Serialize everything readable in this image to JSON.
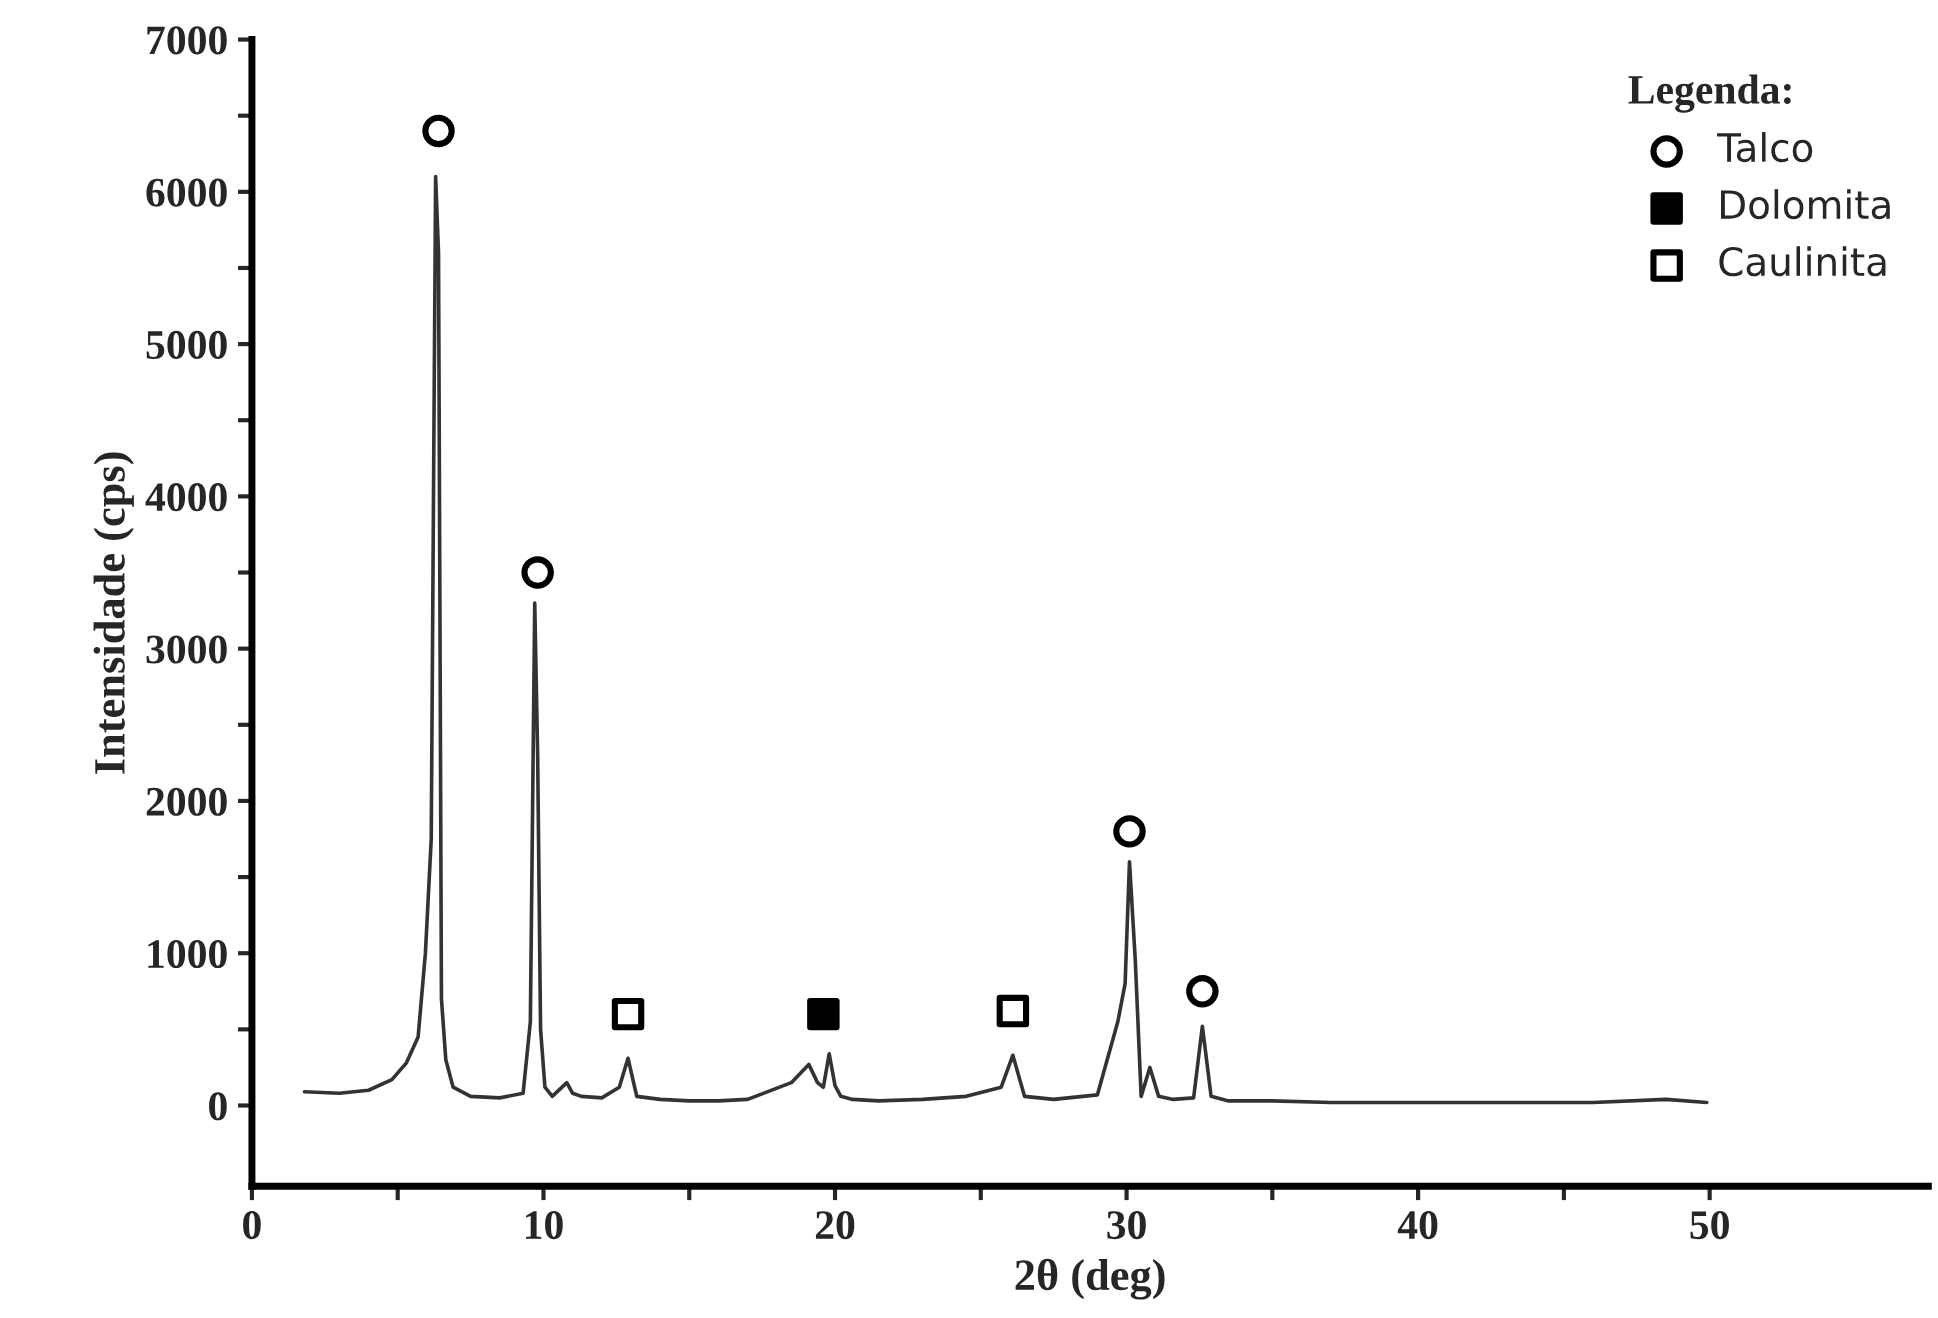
{
  "chart_data": {
    "type": "line",
    "xlabel": "2θ (deg)",
    "ylabel": "Intensidade (cps)",
    "legend_title": "Legenda:",
    "legend": "top right",
    "grid": false,
    "xlim": [
      0,
      57.5
    ],
    "ylim": [
      -530,
      7000
    ],
    "xticks": [
      0,
      {
        "value": 5,
        "label": null
      },
      10,
      {
        "value": 15,
        "label": null
      },
      20,
      {
        "value": 25,
        "label": null
      },
      30,
      {
        "value": 35,
        "label": null
      },
      40,
      {
        "value": 45,
        "label": null
      },
      50
    ],
    "yticks": [
      0,
      {
        "value": 500,
        "label": null
      },
      1000,
      {
        "value": 1500,
        "label": null
      },
      2000,
      {
        "value": 2500,
        "label": null
      },
      3000,
      {
        "value": 3500,
        "label": null
      },
      4000,
      {
        "value": 4500,
        "label": null
      },
      5000,
      {
        "value": 5500,
        "label": null
      },
      6000,
      {
        "value": 6500,
        "label": null
      },
      7000
    ],
    "series": [
      {
        "color": "#333333",
        "marker": "none",
        "x": [
          1.8,
          3,
          4,
          4.8,
          5.3,
          5.7,
          5.95,
          6.15,
          6.3,
          6.4,
          6.5,
          6.65,
          6.9,
          7.5,
          8.5,
          9.3,
          9.55,
          9.7,
          9.8,
          9.9,
          10.05,
          10.3,
          10.8,
          11.0,
          11.3,
          12.0,
          12.6,
          12.9,
          13.2,
          14,
          15,
          16,
          17,
          18.5,
          19.1,
          19.4,
          19.6,
          19.8,
          20.0,
          20.2,
          20.6,
          21.5,
          23,
          24.5,
          25.7,
          26.1,
          26.5,
          27.5,
          29.0,
          29.7,
          29.95,
          30.1,
          30.3,
          30.5,
          30.8,
          31.1,
          31.6,
          32.3,
          32.6,
          32.9,
          33.5,
          35,
          37,
          40,
          43,
          46,
          48.5,
          49.9
        ],
        "values": [
          90,
          80,
          100,
          170,
          280,
          450,
          1000,
          1750,
          6100,
          5600,
          700,
          300,
          120,
          60,
          50,
          80,
          550,
          3300,
          2300,
          500,
          120,
          60,
          150,
          80,
          60,
          50,
          120,
          310,
          60,
          40,
          30,
          30,
          40,
          150,
          270,
          150,
          120,
          340,
          130,
          60,
          40,
          30,
          40,
          60,
          120,
          330,
          60,
          40,
          70,
          550,
          800,
          1600,
          950,
          60,
          250,
          60,
          40,
          50,
          520,
          60,
          30,
          30,
          20,
          20,
          20,
          20,
          40,
          20
        ]
      },
      {
        "type": "scatter",
        "name": "Talco",
        "color": "#000000",
        "marker": "circle",
        "colors": [
          "#ffffff",
          "#ffffff",
          "#ffffff",
          "#ffffff"
        ],
        "x": [
          6.4,
          9.8,
          30.1,
          32.6
        ],
        "values": [
          6400,
          3500,
          1800,
          750
        ]
      },
      {
        "type": "scatter",
        "name": "Dolomita",
        "color": "#000000",
        "marker": "square",
        "colors": [
          "#000000"
        ],
        "x": [
          19.6
        ],
        "values": [
          600
        ]
      },
      {
        "type": "scatter",
        "name": "Caulinita",
        "color": "#000000",
        "marker": "square",
        "colors": [
          "#ffffff",
          "#ffffff"
        ],
        "x": [
          12.9,
          26.1
        ],
        "values": [
          600,
          620
        ]
      }
    ]
  }
}
